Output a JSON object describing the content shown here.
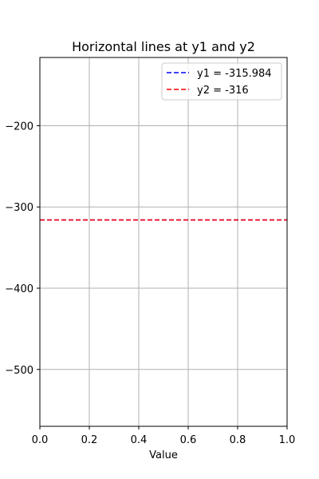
{
  "chart_data": {
    "type": "line",
    "title": "Horizontal lines at y1 and y2",
    "xlabel": "Value",
    "ylabel": "",
    "xlim": [
      0.0,
      1.0
    ],
    "ylim": [
      -570,
      -116
    ],
    "xticks": [
      0.0,
      0.2,
      0.4,
      0.6,
      0.8,
      1.0
    ],
    "xtick_labels": [
      "0.0",
      "0.2",
      "0.4",
      "0.6",
      "0.8",
      "1.0"
    ],
    "yticks": [
      -200,
      -300,
      -400,
      -500
    ],
    "ytick_labels": [
      "−200",
      "−300",
      "−400",
      "−500"
    ],
    "grid": true,
    "legend_position": "top-right",
    "series": [
      {
        "name": "y1 = -315.984",
        "y": -315.984,
        "color": "#0000ff",
        "style": "dashed"
      },
      {
        "name": "y2 = -316",
        "y": -316,
        "color": "#ff0000",
        "style": "dashed"
      }
    ]
  }
}
